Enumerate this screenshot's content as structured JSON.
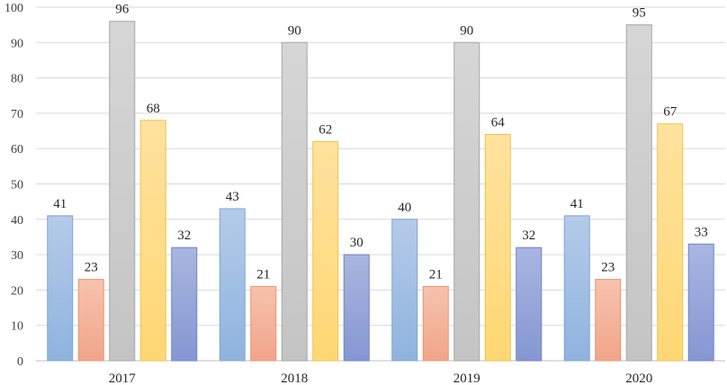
{
  "chart_data": {
    "type": "bar",
    "title": "",
    "xlabel": "",
    "ylabel": "",
    "categories": [
      "2017",
      "2018",
      "2019",
      "2020"
    ],
    "ylim": [
      0,
      100
    ],
    "yticks": [
      0,
      10,
      20,
      30,
      40,
      50,
      60,
      70,
      80,
      90,
      100
    ],
    "grid": true,
    "legend": "none",
    "series": [
      {
        "values": [
          41,
          43,
          40,
          41
        ],
        "color_top": "#b4cbe9",
        "color_bottom": "#8fb3de",
        "stroke": "#7fa6d6"
      },
      {
        "values": [
          23,
          21,
          21,
          23
        ],
        "color_top": "#f7c2ad",
        "color_bottom": "#f1a58a",
        "stroke": "#e99474"
      },
      {
        "values": [
          96,
          90,
          90,
          95
        ],
        "color_top": "#d6d6d6",
        "color_bottom": "#c4c4c4",
        "stroke": "#a6a6a6"
      },
      {
        "values": [
          68,
          62,
          64,
          67
        ],
        "color_top": "#ffe29e",
        "color_bottom": "#ffd773",
        "stroke": "#f2c14e"
      },
      {
        "values": [
          32,
          30,
          32,
          33
        ],
        "color_top": "#a9b6e0",
        "color_bottom": "#8597d3",
        "stroke": "#6f84c8"
      }
    ]
  }
}
